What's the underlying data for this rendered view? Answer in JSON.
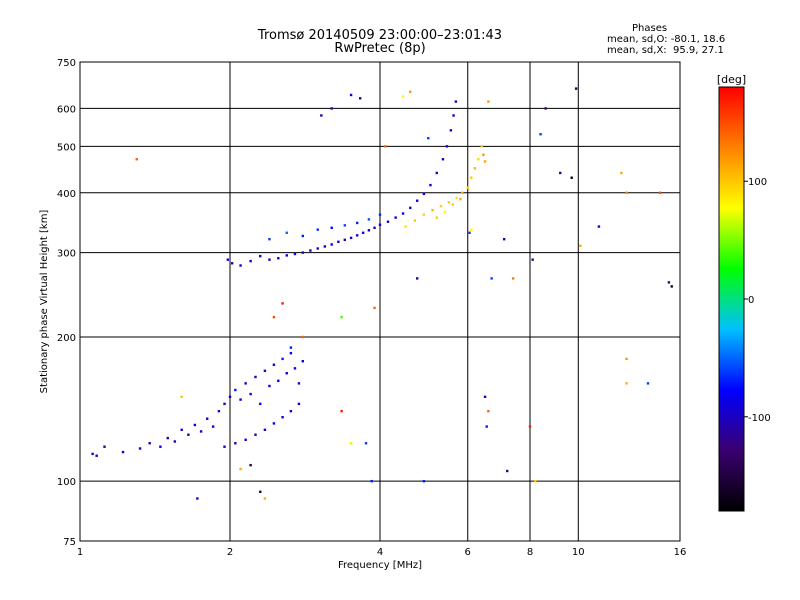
{
  "chart_data": {
    "type": "scatter",
    "title": "Tromsø 20140509 23:00:00–23:01:43",
    "subtitle": "RwPretec (8p)",
    "xlabel": "Frequency [MHz]",
    "ylabel": "Stationary phase Virtual Height [km]",
    "xscale": "log",
    "yscale": "log",
    "xlim": [
      1,
      16
    ],
    "ylim": [
      75,
      750
    ],
    "grid": true,
    "x_ticks": [
      1,
      2,
      4,
      6,
      8,
      10,
      16
    ],
    "y_ticks": [
      75,
      100,
      200,
      300,
      400,
      500,
      600,
      750
    ],
    "phase_legend": {
      "header": "Phases",
      "line1": "mean, sd,O: -80.1, 18.6",
      "line2": "mean, sd,X:  95.9, 27.1"
    },
    "colorbar": {
      "label": "[deg]",
      "range": [
        -180,
        180
      ],
      "ticks": [
        100,
        0,
        -100
      ],
      "colormap": [
        "#000000",
        "#3a0070",
        "#0000ff",
        "#00c0ff",
        "#00ff00",
        "#ffff00",
        "#ff8000",
        "#ff0000"
      ]
    },
    "series": [
      {
        "mode": "O",
        "points": [
          [
            1.06,
            114,
            -95
          ],
          [
            1.08,
            113,
            -100
          ],
          [
            1.12,
            118,
            -110
          ],
          [
            1.22,
            115,
            -95
          ],
          [
            1.32,
            117,
            -90
          ],
          [
            1.38,
            120,
            -100
          ],
          [
            1.45,
            118,
            -85
          ],
          [
            1.5,
            123,
            -95
          ],
          [
            1.55,
            121,
            -110
          ],
          [
            1.6,
            128,
            -90
          ],
          [
            1.65,
            125,
            -100
          ],
          [
            1.7,
            131,
            -85
          ],
          [
            1.75,
            127,
            -95
          ],
          [
            1.8,
            135,
            -105
          ],
          [
            1.85,
            130,
            -80
          ],
          [
            1.9,
            140,
            -90
          ],
          [
            1.95,
            145,
            -100
          ],
          [
            2.0,
            150,
            -95
          ],
          [
            2.05,
            155,
            -70
          ],
          [
            2.1,
            148,
            -85
          ],
          [
            2.15,
            160,
            -100
          ],
          [
            2.2,
            152,
            -90
          ],
          [
            2.25,
            165,
            -110
          ],
          [
            2.3,
            145,
            -75
          ],
          [
            2.35,
            170,
            -95
          ],
          [
            2.4,
            158,
            -85
          ],
          [
            2.45,
            175,
            -100
          ],
          [
            2.5,
            162,
            -90
          ],
          [
            2.55,
            180,
            -70
          ],
          [
            2.6,
            168,
            -95
          ],
          [
            2.65,
            185,
            -80
          ],
          [
            2.7,
            172,
            -90
          ],
          [
            2.75,
            160,
            -100
          ],
          [
            2.8,
            178,
            -85
          ],
          [
            1.95,
            118,
            -95
          ],
          [
            2.05,
            120,
            -100
          ],
          [
            2.15,
            122,
            -90
          ],
          [
            2.25,
            125,
            -105
          ],
          [
            2.35,
            128,
            -95
          ],
          [
            2.45,
            132,
            -85
          ],
          [
            2.55,
            136,
            -90
          ],
          [
            2.65,
            140,
            -100
          ],
          [
            2.75,
            145,
            -95
          ],
          [
            1.98,
            290,
            -90
          ],
          [
            2.02,
            285,
            -100
          ],
          [
            2.1,
            282,
            -95
          ],
          [
            2.2,
            288,
            -85
          ],
          [
            2.3,
            295,
            -90
          ],
          [
            2.4,
            290,
            -100
          ],
          [
            2.5,
            292,
            -95
          ],
          [
            2.6,
            296,
            -90
          ],
          [
            2.7,
            298,
            -80
          ],
          [
            2.8,
            300,
            -95
          ],
          [
            2.9,
            303,
            -90
          ],
          [
            3.0,
            306,
            -100
          ],
          [
            3.1,
            309,
            -95
          ],
          [
            3.2,
            312,
            -85
          ],
          [
            3.3,
            316,
            -90
          ],
          [
            3.4,
            319,
            -100
          ],
          [
            3.5,
            322,
            -95
          ],
          [
            3.6,
            326,
            -90
          ],
          [
            3.7,
            330,
            -85
          ],
          [
            3.8,
            334,
            -95
          ],
          [
            3.9,
            338,
            -100
          ],
          [
            4.0,
            343,
            -90
          ],
          [
            4.15,
            348,
            -95
          ],
          [
            4.3,
            355,
            -85
          ],
          [
            4.45,
            362,
            -90
          ],
          [
            4.6,
            372,
            -100
          ],
          [
            4.75,
            385,
            -95
          ],
          [
            4.9,
            398,
            -90
          ],
          [
            5.05,
            415,
            -85
          ],
          [
            5.2,
            440,
            -100
          ],
          [
            5.35,
            470,
            -95
          ],
          [
            5.45,
            500,
            -90
          ],
          [
            5.55,
            540,
            -85
          ],
          [
            5.62,
            580,
            -95
          ],
          [
            5.68,
            620,
            -100
          ],
          [
            2.4,
            320,
            -60
          ],
          [
            2.6,
            330,
            -50
          ],
          [
            2.8,
            325,
            -70
          ],
          [
            3.0,
            335,
            -65
          ],
          [
            3.2,
            338,
            -75
          ],
          [
            3.4,
            342,
            -60
          ],
          [
            3.6,
            346,
            -70
          ],
          [
            3.8,
            352,
            -55
          ],
          [
            4.0,
            360,
            -65
          ]
        ]
      },
      {
        "mode": "X",
        "points": [
          [
            4.5,
            340,
            90
          ],
          [
            4.7,
            350,
            100
          ],
          [
            4.9,
            360,
            95
          ],
          [
            5.1,
            368,
            105
          ],
          [
            5.3,
            375,
            95
          ],
          [
            5.5,
            382,
            100
          ],
          [
            5.7,
            390,
            90
          ],
          [
            5.85,
            400,
            110
          ],
          [
            6.0,
            410,
            95
          ],
          [
            6.1,
            430,
            100
          ],
          [
            6.2,
            450,
            105
          ],
          [
            6.3,
            470,
            90
          ],
          [
            6.4,
            500,
            100
          ],
          [
            6.45,
            480,
            120
          ],
          [
            6.5,
            465,
            115
          ],
          [
            5.2,
            355,
            95
          ],
          [
            5.4,
            365,
            80
          ],
          [
            5.6,
            378,
            100
          ],
          [
            5.8,
            388,
            110
          ]
        ]
      },
      {
        "mode": "scattered",
        "points": [
          [
            1.3,
            470,
            140
          ],
          [
            1.72,
            92,
            -95
          ],
          [
            2.1,
            106,
            110
          ],
          [
            2.2,
            108,
            -150
          ],
          [
            2.3,
            95,
            -150
          ],
          [
            2.35,
            92,
            110
          ],
          [
            2.45,
            220,
            150
          ],
          [
            2.55,
            235,
            170
          ],
          [
            2.8,
            200,
            140
          ],
          [
            3.05,
            580,
            -110
          ],
          [
            3.2,
            600,
            -100
          ],
          [
            3.35,
            220,
            40
          ],
          [
            3.35,
            140,
            170
          ],
          [
            3.5,
            120,
            70
          ],
          [
            3.5,
            640,
            -80
          ],
          [
            3.65,
            630,
            -100
          ],
          [
            3.75,
            120,
            -60
          ],
          [
            3.85,
            100,
            -70
          ],
          [
            4.1,
            500,
            140
          ],
          [
            4.45,
            635,
            80
          ],
          [
            4.6,
            650,
            120
          ],
          [
            4.75,
            265,
            -110
          ],
          [
            4.9,
            100,
            -70
          ],
          [
            5.0,
            520,
            -60
          ],
          [
            6.6,
            620,
            120
          ],
          [
            6.6,
            140,
            140
          ],
          [
            6.55,
            130,
            -70
          ],
          [
            6.5,
            150,
            -90
          ],
          [
            6.7,
            265,
            -60
          ],
          [
            7.2,
            105,
            -120
          ],
          [
            7.1,
            320,
            -100
          ],
          [
            7.4,
            265,
            130
          ],
          [
            8.0,
            130,
            170
          ],
          [
            8.1,
            290,
            -120
          ],
          [
            8.2,
            100,
            100
          ],
          [
            8.6,
            600,
            -130
          ],
          [
            8.4,
            530,
            -60
          ],
          [
            9.2,
            440,
            -110
          ],
          [
            9.7,
            430,
            -170
          ],
          [
            9.9,
            660,
            -150
          ],
          [
            10.1,
            310,
            110
          ],
          [
            11.0,
            340,
            -90
          ],
          [
            12.2,
            440,
            110
          ],
          [
            12.5,
            400,
            130
          ],
          [
            12.5,
            180,
            120
          ],
          [
            12.5,
            160,
            110
          ],
          [
            13.8,
            160,
            -60
          ],
          [
            14.6,
            400,
            150
          ],
          [
            15.2,
            260,
            -130
          ],
          [
            15.4,
            255,
            -160
          ],
          [
            6.05,
            330,
            -60
          ],
          [
            6.1,
            335,
            80
          ],
          [
            3.9,
            230,
            140
          ],
          [
            2.65,
            190,
            -70
          ],
          [
            1.6,
            150,
            100
          ]
        ]
      }
    ]
  }
}
